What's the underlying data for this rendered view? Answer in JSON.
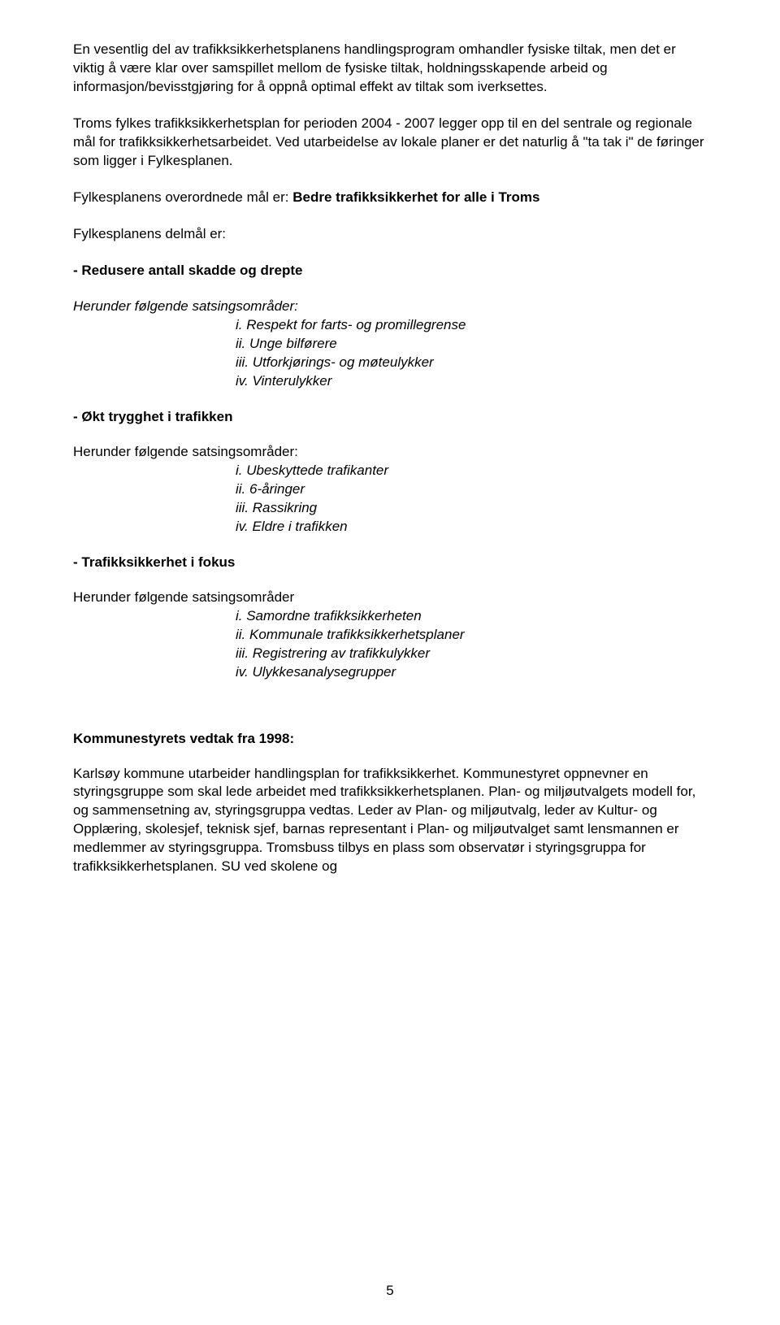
{
  "para1": "En vesentlig del av trafikksikkerhetsplanens handlingsprogram omhandler fysiske tiltak, men det er viktig å være klar over samspillet mellom de fysiske tiltak, holdningsskapende arbeid og informasjon/bevisstgjøring for å oppnå optimal effekt av tiltak som iverksettes.",
  "para2": "Troms fylkes trafikksikkerhetsplan for perioden 2004 - 2007 legger opp til en del sentrale og regionale mål for trafikksikkerhetsarbeidet. Ved utarbeidelse av lokale planer er det naturlig å \"ta tak i\" de føringer som ligger i Fylkesplanen.",
  "goal_prefix": "Fylkesplanens overordnede mål er:  ",
  "goal_bold": "Bedre trafikksikkerhet for alle i Troms",
  "delmal_intro": " Fylkesplanens delmål er:",
  "section1": {
    "bullet": "-  Redusere antall skadde og drepte",
    "sats": "Herunder følgende satsingsområder:",
    "items": [
      "i.  Respekt for farts- og promillegrense",
      "ii.  Unge bilførere",
      "iii.  Utforkjørings- og møteulykker",
      "iv.  Vinterulykker"
    ]
  },
  "section2": {
    "heading": "- Økt trygghet i trafikken",
    "sats": "Herunder følgende satsingsområder:",
    "items": [
      "i.  Ubeskyttede trafikanter",
      "ii.  6-åringer",
      "iii.   Rassikring",
      "iv.  Eldre i trafikken"
    ]
  },
  "section3": {
    "heading": "- Trafikksikkerhet i fokus",
    "sats": "Herunder følgende satsingsområder",
    "items": [
      "i.  Samordne trafikksikkerheten",
      "ii.  Kommunale trafikksikkerhetsplaner",
      "iii.   Registrering av trafikkulykker",
      "iv.  Ulykkesanalysegrupper"
    ]
  },
  "vedtak_heading": "Kommunestyrets vedtak fra 1998:",
  "vedtak_para": "Karlsøy kommune utarbeider handlingsplan for trafikksikkerhet. Kommunestyret oppnevner en styringsgruppe som skal lede arbeidet med trafikksikkerhetsplanen. Plan- og miljøutvalgets modell for, og sammensetning av, styringsgruppa vedtas. Leder av Plan- og miljøutvalg, leder av Kultur- og Opplæring, skolesjef, teknisk sjef, barnas representant i Plan- og miljøutvalget samt lensmannen er medlemmer av styringsgruppa. Tromsbuss tilbys en plass som observatør i styringsgruppa for trafikksikkerhetsplanen. SU ved skolene og",
  "page_number": "5"
}
